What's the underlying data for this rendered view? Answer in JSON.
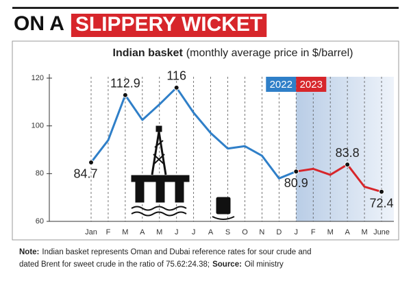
{
  "chart_data": {
    "type": "line",
    "title_parts": [
      "ON A",
      "SLIPPERY WICKET"
    ],
    "subtitle_parts": [
      "Indian basket",
      "(monthly average price in $/barrel)"
    ],
    "categories": [
      "Jan",
      "F",
      "M",
      "A",
      "M",
      "J",
      "J",
      "A",
      "S",
      "O",
      "N",
      "D",
      "J",
      "F",
      "M",
      "A",
      "M",
      "June"
    ],
    "series": [
      {
        "name": "2022",
        "color": "#2f7fc8",
        "values": [
          84.7,
          94,
          112.9,
          102.5,
          109,
          116,
          105.5,
          97,
          90.5,
          91.5,
          87.5,
          78,
          80.9,
          null,
          null,
          null,
          null,
          null
        ]
      },
      {
        "name": "2023",
        "color": "#d7262b",
        "values": [
          null,
          null,
          null,
          null,
          null,
          null,
          null,
          null,
          null,
          null,
          null,
          null,
          80.9,
          82,
          79.5,
          83.8,
          74.5,
          72.4
        ]
      }
    ],
    "value_labels": [
      [
        84.7,
        null,
        112.9,
        null,
        null,
        116,
        null,
        null,
        null,
        null,
        null,
        null,
        null,
        null,
        null,
        null,
        null,
        null
      ],
      [
        null,
        null,
        null,
        null,
        null,
        null,
        null,
        null,
        null,
        null,
        null,
        null,
        80.9,
        null,
        null,
        83.8,
        null,
        72.4
      ]
    ],
    "ylim": [
      60,
      120
    ],
    "yticks": [
      60,
      80,
      100,
      120
    ],
    "grid": true,
    "highlight_from_category": 12,
    "note_parts": [
      "Note:",
      "Indian basket represents Oman and Dubai reference rates for sour crude and",
      "dated Brent for sweet crude in the ratio of 75.62:24.38;",
      "Source:",
      "Oil ministry"
    ]
  }
}
